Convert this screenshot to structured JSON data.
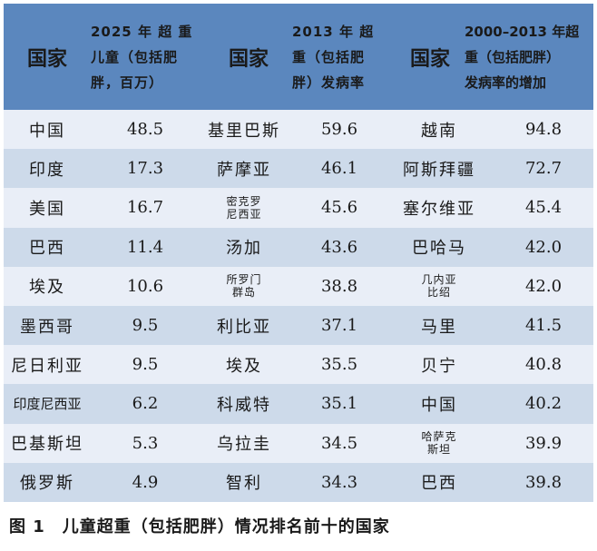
{
  "headers": {
    "country": "国家",
    "col2025": [
      "2025 年 超 重",
      "儿童（包括肥",
      "胖，百万）"
    ],
    "col2013": [
      "2013 年 超",
      "重（包括肥",
      "胖）发病率"
    ],
    "col2000": [
      "2000–2013 年超",
      "重（包括肥胖）",
      "发病率的增加"
    ]
  },
  "rows": [
    {
      "c1": "中国",
      "v1": "48.5",
      "c2": "基里巴斯",
      "v2": "59.6",
      "c3": "越南",
      "v3": "94.8"
    },
    {
      "c1": "印度",
      "v1": "17.3",
      "c2": "萨摩亚",
      "v2": "46.1",
      "c3": "阿斯拜疆",
      "v3": "72.7"
    },
    {
      "c1": "美国",
      "v1": "16.7",
      "c2": "密克罗\n尼西亚",
      "v2": "45.6",
      "c3": "塞尔维亚",
      "v3": "45.4"
    },
    {
      "c1": "巴西",
      "v1": "11.4",
      "c2": "汤加",
      "v2": "43.6",
      "c3": "巴哈马",
      "v3": "42.0"
    },
    {
      "c1": "埃及",
      "v1": "10.6",
      "c2": "所罗门\n群岛",
      "v2": "38.8",
      "c3": "几内亚\n比绍",
      "v3": "42.0"
    },
    {
      "c1": "墨西哥",
      "v1": "9.5",
      "c2": "利比亚",
      "v2": "37.1",
      "c3": "马里",
      "v3": "41.5"
    },
    {
      "c1": "尼日利亚",
      "v1": "9.5",
      "c2": "埃及",
      "v2": "35.5",
      "c3": "贝宁",
      "v3": "40.8"
    },
    {
      "c1": "印度尼西亚",
      "v1": "6.2",
      "c2": "科威特",
      "v2": "35.1",
      "c3": "中国",
      "v3": "40.2"
    },
    {
      "c1": "巴基斯坦",
      "v1": "5.3",
      "c2": "乌拉圭",
      "v2": "34.5",
      "c3": "哈萨克\n斯坦",
      "v3": "39.9"
    },
    {
      "c1": "俄罗斯",
      "v1": "4.9",
      "c2": "智利",
      "v2": "34.3",
      "c3": "巴西",
      "v3": "39.8"
    }
  ],
  "caption": "图 1　儿童超重（包括肥胖）情况排名前十的国家",
  "colors": {
    "header": "#5b87be",
    "row_light": "#e9eef7",
    "row_dark": "#cddaea"
  }
}
